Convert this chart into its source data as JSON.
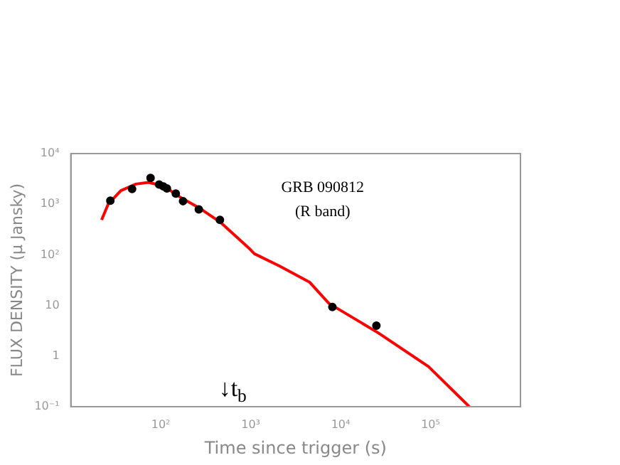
{
  "chart_data": {
    "type": "scatter",
    "xlabel": "Time since trigger (s)",
    "ylabel": "FLUX DENSITY (μ Jansky)",
    "log": "xy",
    "grid": false,
    "legend": false,
    "xlim": [
      10,
      1000000
    ],
    "ylim": [
      0.1,
      10000
    ],
    "xticks": [
      {
        "value": 100,
        "label": "10²"
      },
      {
        "value": 1000,
        "label": "10³"
      },
      {
        "value": 10000,
        "label": "10⁴"
      },
      {
        "value": 100000,
        "label": "10⁵"
      }
    ],
    "yticks": [
      {
        "value": 0.1,
        "label": "10⁻¹"
      },
      1,
      10,
      {
        "value": 100,
        "label": "10²"
      },
      {
        "value": 1000,
        "label": "10³"
      },
      {
        "value": 10000,
        "label": "10⁴"
      }
    ],
    "annotations": [
      "GRB 090812",
      "(R band)",
      "↓t$_{b}$"
    ],
    "series": [
      {
        "type": "scatter",
        "color": "#000000",
        "marker": "circle",
        "x": [
          27.5,
          48,
          77,
          96,
          107,
          117,
          147,
          177,
          265,
          455,
          8100,
          25000
        ],
        "values": [
          1170,
          2000,
          3300,
          2450,
          2250,
          2050,
          1620,
          1150,
          790,
          490,
          9.3,
          4.0
        ]
      },
      {
        "type": "line",
        "color": "#ff0000",
        "marker": "none",
        "line_style": "solid",
        "x": [
          22,
          26,
          36,
          53,
          73,
          107,
          165,
          275,
          460,
          980,
          1100,
          2100,
          4500,
          7400,
          26000,
          95000,
          270000
        ],
        "values": [
          490,
          1000,
          1850,
          2500,
          2700,
          2300,
          1370,
          820,
          440,
          130,
          105,
          60,
          29,
          11,
          2.9,
          0.62,
          0.1
        ]
      }
    ]
  }
}
